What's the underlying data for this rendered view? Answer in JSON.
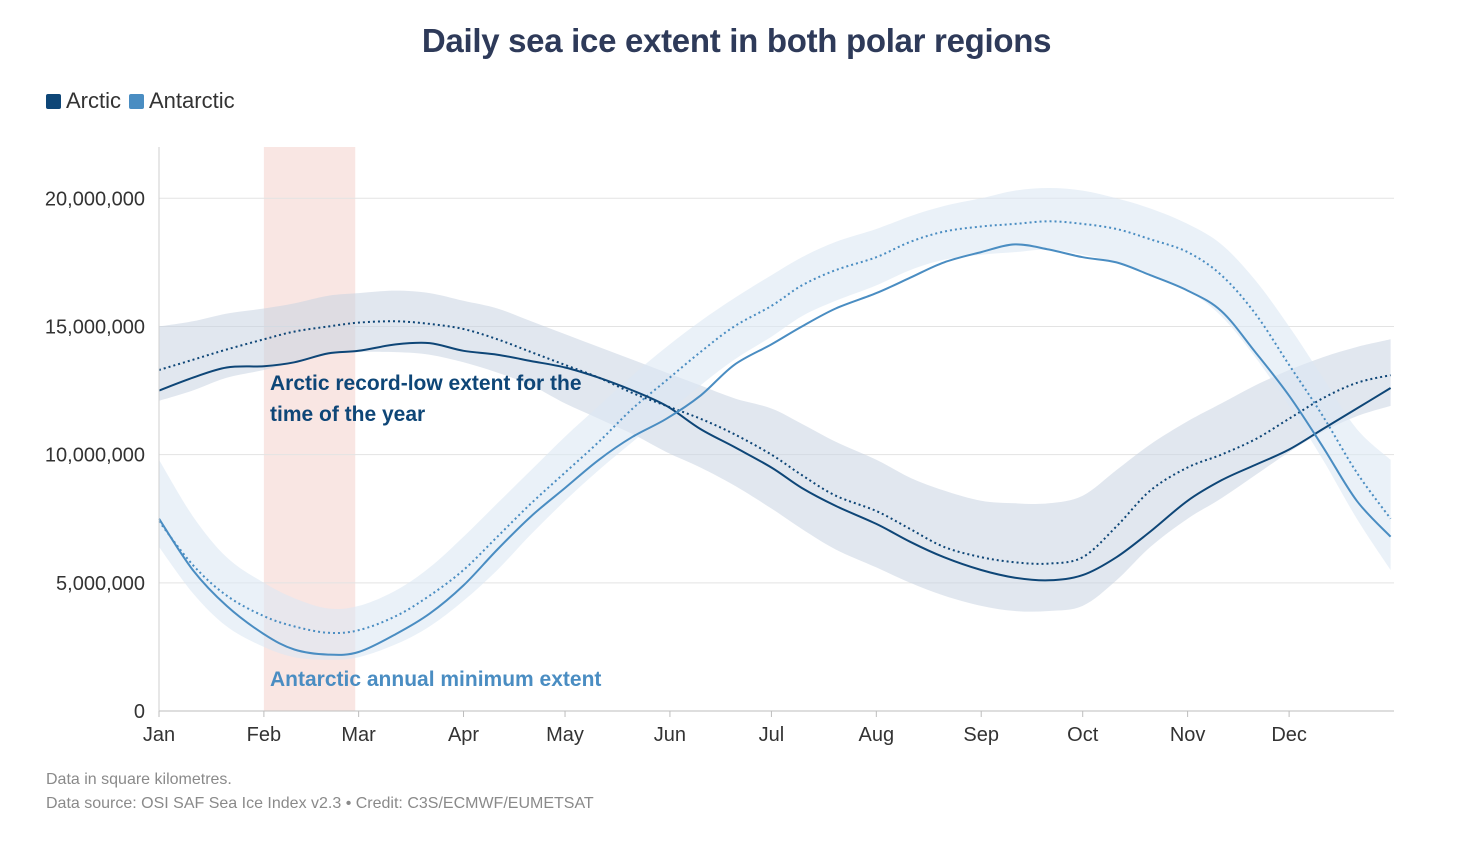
{
  "chart_data": {
    "type": "line",
    "title": "Daily sea ice extent in both polar regions",
    "xlabel": "",
    "ylabel": "",
    "xlim": [
      0,
      365
    ],
    "ylim": [
      0,
      22000000
    ],
    "x_ticks": [
      {
        "label": "Jan",
        "day": 0
      },
      {
        "label": "Feb",
        "day": 31
      },
      {
        "label": "Mar",
        "day": 59
      },
      {
        "label": "Apr",
        "day": 90
      },
      {
        "label": "May",
        "day": 120
      },
      {
        "label": "Jun",
        "day": 151
      },
      {
        "label": "Jul",
        "day": 181
      },
      {
        "label": "Aug",
        "day": 212
      },
      {
        "label": "Sep",
        "day": 243
      },
      {
        "label": "Oct",
        "day": 273
      },
      {
        "label": "Nov",
        "day": 304
      },
      {
        "label": "Dec",
        "day": 334
      }
    ],
    "y_ticks": [
      {
        "label": "0",
        "value": 0
      },
      {
        "label": "5,000,000",
        "value": 5000000
      },
      {
        "label": "10,000,000",
        "value": 10000000
      },
      {
        "label": "15,000,000",
        "value": 15000000
      },
      {
        "label": "20,000,000",
        "value": 20000000
      }
    ],
    "grid": true,
    "legend_position": "top-left",
    "highlight_period": {
      "start_day": 31,
      "end_day": 58,
      "color": "#f8e2de"
    },
    "series": [
      {
        "name": "Arctic",
        "color": "#0e4677",
        "band_color": "#c9d4e1",
        "days": [
          0,
          10,
          20,
          31,
          40,
          50,
          59,
          70,
          80,
          90,
          100,
          110,
          120,
          130,
          140,
          150,
          160,
          170,
          181,
          190,
          200,
          212,
          222,
          232,
          243,
          253,
          263,
          273,
          283,
          293,
          304,
          314,
          324,
          334,
          344,
          354,
          364
        ],
        "values": [
          12500000,
          13000000,
          13400000,
          13450000,
          13600000,
          13950000,
          14050000,
          14300000,
          14350000,
          14050000,
          13900000,
          13650000,
          13400000,
          13000000,
          12500000,
          11900000,
          11000000,
          10300000,
          9500000,
          8700000,
          8000000,
          7300000,
          6600000,
          6000000,
          5500000,
          5200000,
          5100000,
          5300000,
          6000000,
          7000000,
          8200000,
          9000000,
          9600000,
          10200000,
          11000000,
          11800000,
          12600000
        ],
        "median": [
          13300000,
          13700000,
          14100000,
          14500000,
          14800000,
          15000000,
          15150000,
          15200000,
          15100000,
          14900000,
          14500000,
          14000000,
          13500000,
          13000000,
          12400000,
          11900000,
          11400000,
          10800000,
          10000000,
          9200000,
          8400000,
          7800000,
          7100000,
          6400000,
          6000000,
          5800000,
          5750000,
          6000000,
          7200000,
          8600000,
          9500000,
          10000000,
          10600000,
          11400000,
          12200000,
          12800000,
          13100000
        ],
        "band_low": [
          12100000,
          12500000,
          13000000,
          13300000,
          13600000,
          13900000,
          14000000,
          14000000,
          13900000,
          13600000,
          13200000,
          12700000,
          12000000,
          11400000,
          10800000,
          10100000,
          9500000,
          8800000,
          7900000,
          7100000,
          6300000,
          5600000,
          5000000,
          4500000,
          4100000,
          3900000,
          3900000,
          4100000,
          5100000,
          6400000,
          7500000,
          8300000,
          9200000,
          10100000,
          10900000,
          11500000,
          11900000
        ],
        "band_high": [
          15000000,
          15200000,
          15500000,
          15700000,
          15900000,
          16200000,
          16300000,
          16400000,
          16300000,
          16000000,
          15700000,
          15200000,
          14700000,
          14200000,
          13700000,
          13200000,
          12700000,
          12200000,
          11800000,
          11200000,
          10500000,
          9800000,
          9100000,
          8600000,
          8200000,
          8100000,
          8100000,
          8400000,
          9400000,
          10400000,
          11300000,
          12000000,
          12700000,
          13300000,
          13800000,
          14200000,
          14500000
        ]
      },
      {
        "name": "Antarctic",
        "color": "#4a8dc2",
        "band_color": "#dce7f3",
        "days": [
          0,
          10,
          20,
          31,
          40,
          50,
          59,
          70,
          80,
          90,
          100,
          110,
          120,
          130,
          140,
          150,
          160,
          170,
          181,
          190,
          200,
          212,
          222,
          232,
          243,
          253,
          263,
          273,
          283,
          293,
          304,
          314,
          324,
          334,
          344,
          354,
          364
        ],
        "values": [
          7500000,
          5500000,
          4100000,
          3000000,
          2400000,
          2200000,
          2300000,
          3000000,
          3800000,
          4900000,
          6300000,
          7600000,
          8700000,
          9800000,
          10700000,
          11400000,
          12300000,
          13500000,
          14300000,
          15000000,
          15700000,
          16300000,
          16900000,
          17500000,
          17900000,
          18200000,
          18000000,
          17700000,
          17500000,
          17000000,
          16400000,
          15600000,
          14000000,
          12300000,
          10300000,
          8200000,
          6800000
        ],
        "median": [
          7400000,
          5700000,
          4500000,
          3700000,
          3300000,
          3050000,
          3150000,
          3700000,
          4500000,
          5500000,
          6800000,
          8100000,
          9300000,
          10500000,
          11800000,
          12900000,
          14000000,
          15000000,
          15800000,
          16600000,
          17200000,
          17700000,
          18300000,
          18700000,
          18900000,
          19000000,
          19100000,
          19000000,
          18800000,
          18400000,
          17900000,
          17000000,
          15500000,
          13500000,
          11500000,
          9300000,
          7500000
        ],
        "band_low": [
          6400000,
          4600000,
          3300000,
          2500000,
          2100000,
          2000000,
          2100000,
          2600000,
          3300000,
          4300000,
          5500000,
          6900000,
          8200000,
          9400000,
          10500000,
          11600000,
          12700000,
          13700000,
          14600000,
          15400000,
          16000000,
          16600000,
          17200000,
          17600000,
          17800000,
          17900000,
          18000000,
          17800000,
          17500000,
          17000000,
          16400000,
          15400000,
          13800000,
          11900000,
          9800000,
          7500000,
          5500000
        ],
        "band_high": [
          9800000,
          7600000,
          6000000,
          5000000,
          4400000,
          4000000,
          4100000,
          4700000,
          5600000,
          6800000,
          8100000,
          9400000,
          10700000,
          11900000,
          13100000,
          14200000,
          15200000,
          16100000,
          17000000,
          17700000,
          18300000,
          18800000,
          19300000,
          19700000,
          20000000,
          20300000,
          20400000,
          20300000,
          20000000,
          19600000,
          19000000,
          18200000,
          16800000,
          15000000,
          13000000,
          11000000,
          9800000
        ]
      }
    ],
    "annotations": [
      {
        "text_line1": "Arctic record-low extent for the",
        "text_line2": "time of the year",
        "color": "#0e4677"
      },
      {
        "text": "Antarctic annual minimum extent",
        "color": "#4a8dc2"
      }
    ]
  },
  "footer": {
    "note": "Data in square kilometres.",
    "source": "Data source: OSI SAF Sea Ice Index v2.3 • Credit: C3S/ECMWF/EUMETSAT"
  }
}
